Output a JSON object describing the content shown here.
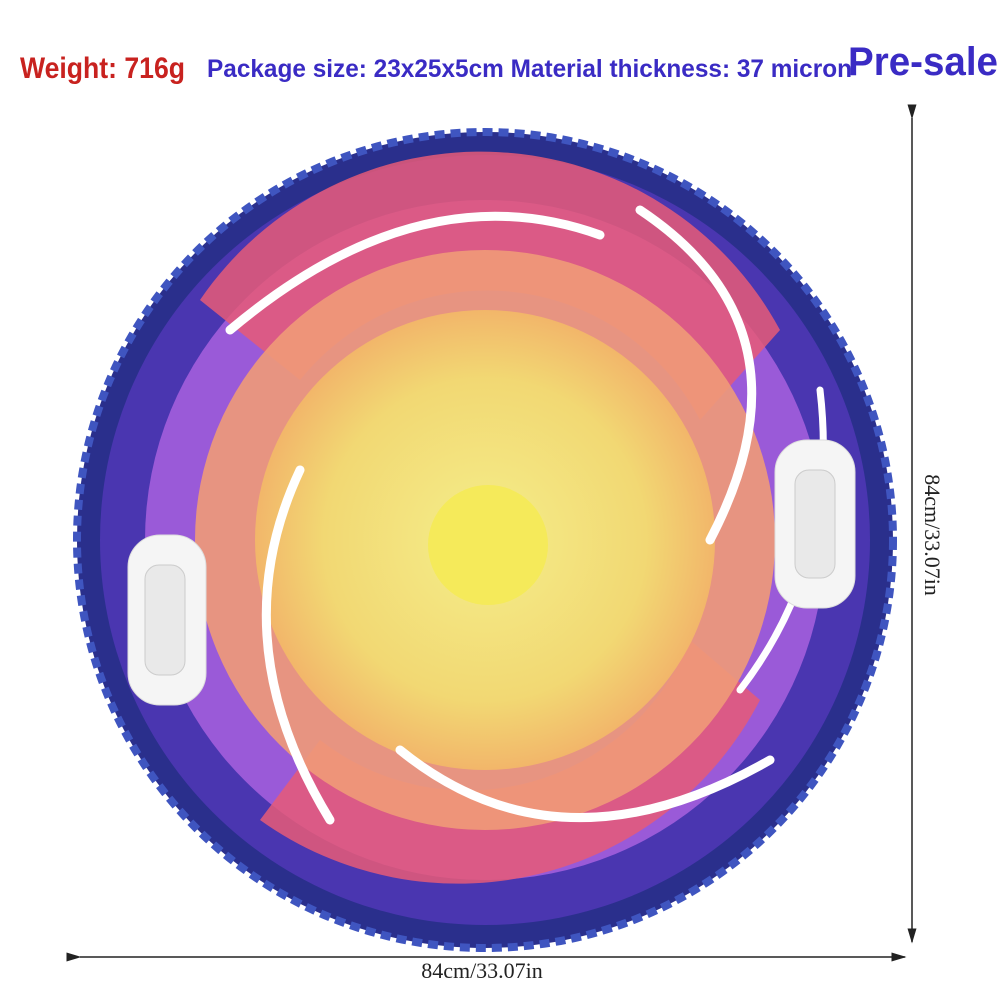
{
  "header": {
    "weight": "Weight: 716g",
    "package": "Package size: 23x25x5cm Material thickness: 37 micron",
    "badge": "Pre-sale"
  },
  "dimensions": {
    "width": "84cm/33.07in",
    "height": "84cm/33.07in"
  }
}
